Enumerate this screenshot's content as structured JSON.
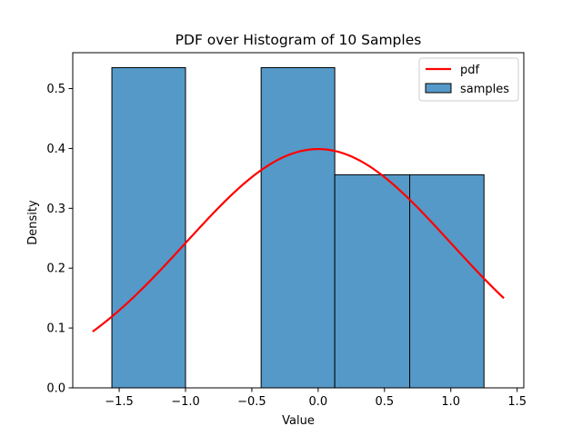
{
  "chart_data": {
    "type": "bar",
    "title": "PDF over Histogram of 10 Samples",
    "xlabel": "Value",
    "ylabel": "Density",
    "xlim": [
      -1.85,
      1.55
    ],
    "ylim": [
      0,
      0.56
    ],
    "x_ticks": [
      -1.5,
      -1.0,
      -0.5,
      0.0,
      0.5,
      1.0,
      1.5
    ],
    "x_tick_labels": [
      "−1.5",
      "−1.0",
      "−0.5",
      "0.0",
      "0.5",
      "1.0",
      "1.5"
    ],
    "y_ticks": [
      0.0,
      0.1,
      0.2,
      0.3,
      0.4,
      0.5
    ],
    "y_tick_labels": [
      "0.0",
      "0.1",
      "0.2",
      "0.3",
      "0.4",
      "0.5"
    ],
    "grid": false,
    "legend_position": "top-right",
    "series": [
      {
        "name": "samples",
        "kind": "histogram",
        "color": "#5599c8",
        "edge_color": "#000000",
        "bin_edges": [
          -1.555,
          -1.0,
          -0.43,
          0.125,
          0.69,
          1.25
        ],
        "densities": [
          0.535,
          0.0,
          0.535,
          0.356,
          0.356
        ]
      },
      {
        "name": "pdf",
        "kind": "line",
        "color": "#ff0000",
        "distribution": "normal",
        "mean": 0.0,
        "std": 1.0,
        "x_range": [
          -1.7,
          1.4
        ]
      }
    ]
  }
}
